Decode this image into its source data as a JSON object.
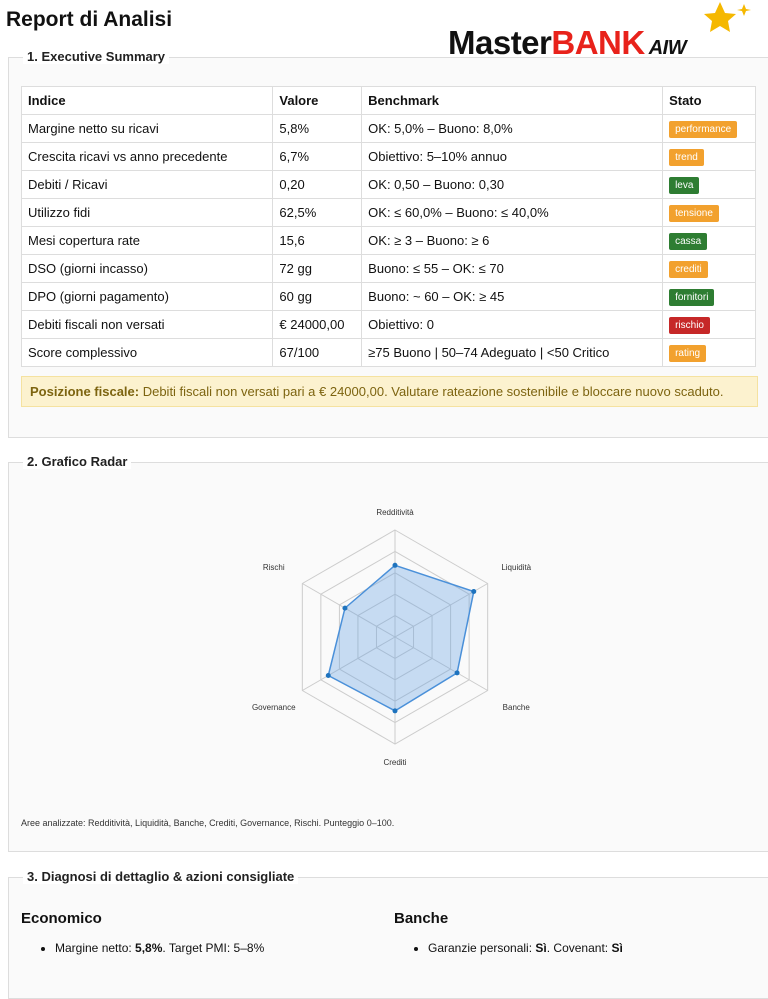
{
  "header": {
    "title": "Report di Analisi",
    "logo": {
      "master": "Master",
      "bank": "BANK",
      "suffix": "AIW"
    }
  },
  "sections": {
    "summary": {
      "legend": "1. Executive Summary",
      "table": {
        "columns": [
          "Indice",
          "Valore",
          "Benchmark",
          "Stato"
        ],
        "rows": [
          [
            "Margine netto su ricavi",
            "5,8%",
            "OK: 5,0% – Buono: 8,0%",
            "performance"
          ],
          [
            "Crescita ricavi vs anno precedente",
            "6,7%",
            "Obiettivo: 5–10% annuo",
            "trend"
          ],
          [
            "Debiti / Ricavi",
            "0,20",
            "OK: 0,50 – Buono: 0,30",
            "leva"
          ],
          [
            "Utilizzo fidi",
            "62,5%",
            "OK: ≤ 60,0% – Buono: ≤ 40,0%",
            "tensione"
          ],
          [
            "Mesi copertura rate",
            "15,6",
            "OK: ≥ 3 – Buono: ≥ 6",
            "cassa"
          ],
          [
            "DSO (giorni incasso)",
            "72 gg",
            "Buono: ≤ 55 – OK: ≤ 70",
            "crediti"
          ],
          [
            "DPO (giorni pagamento)",
            "60 gg",
            "Buono: ~ 60 – OK: ≥ 45",
            "fornitori"
          ],
          [
            "Debiti fiscali non versati",
            "€ 24000,00",
            "Obiettivo: 0",
            "rischio"
          ],
          [
            "Score complessivo",
            "67/100",
            "≥75 Buono | 50–74 Adeguato | <50 Critico",
            "rating"
          ]
        ],
        "badge_colors": [
          "#f2a12e",
          "#f2a12e",
          "#2e7d32",
          "#f2a12e",
          "#2e7d32",
          "#f2a12e",
          "#2e7d32",
          "#c62828",
          "#f2a12e"
        ]
      },
      "notice": {
        "label": "Posizione fiscale:",
        "text": " Debiti fiscali non versati pari a € 24000,00. Valutare rateazione sostenibile e bloccare nuovo scaduto."
      }
    },
    "radar": {
      "legend": "2. Grafico Radar",
      "type": "radar",
      "categories": [
        "Redditività",
        "Liquidità",
        "Banche",
        "Crediti",
        "Governance",
        "Rischi"
      ],
      "values": [
        67,
        85,
        67,
        69,
        72,
        54
      ],
      "ylim": [
        0,
        100
      ],
      "yticks": [
        20,
        40,
        60,
        80,
        100
      ],
      "grid": true,
      "color": "#4a90d9",
      "note": "Aree analizzate: Redditività, Liquidità, Banche, Crediti, Governance, Rischi. Punteggio 0–100."
    },
    "diagnosis": {
      "legend": "3. Diagnosi di dettaglio & azioni consigliate",
      "columns": [
        {
          "title": "Economico",
          "items": [
            [
              "Margine netto: ",
              "5,8%",
              ". Target PMI: 5–8%"
            ]
          ]
        },
        {
          "title": "Banche",
          "items": [
            [
              "Garanzie personali: ",
              "Sì",
              ". Covenant: ",
              "Sì"
            ]
          ]
        }
      ]
    }
  }
}
